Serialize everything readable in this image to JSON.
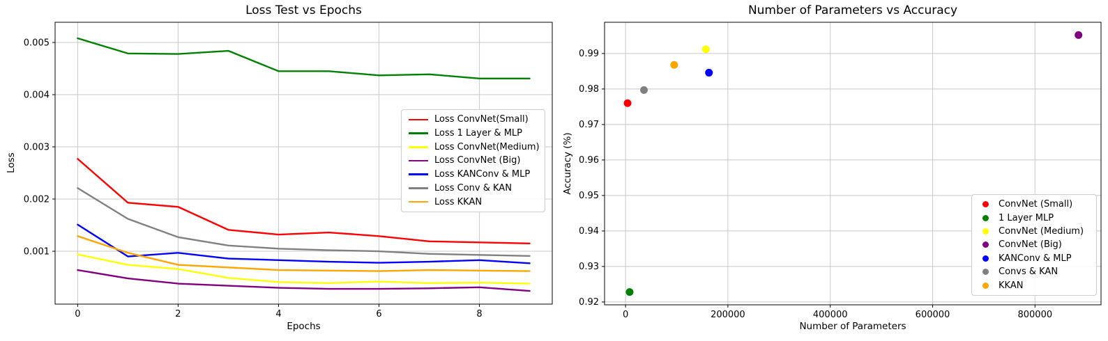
{
  "figure": {
    "background": "#ffffff",
    "text_color": "#000000",
    "grid_color": "#c8c8c8"
  },
  "chart_data": [
    {
      "type": "line",
      "title": "Loss Test vs Epochs",
      "xlabel": "Epochs",
      "ylabel": "Loss",
      "grid": true,
      "legend_position": "center right",
      "xlim": [
        -0.45,
        9.45
      ],
      "ylim": [
        -1.3e-05,
        0.005387
      ],
      "xticks": [
        0,
        2,
        4,
        6,
        8
      ],
      "xtick_labels": [
        "0",
        "2",
        "4",
        "6",
        "8"
      ],
      "yticks": [
        0.001,
        0.002,
        0.003,
        0.004,
        0.005
      ],
      "ytick_labels": [
        "0.001",
        "0.002",
        "0.003",
        "0.004",
        "0.005"
      ],
      "x": [
        0,
        1,
        2,
        3,
        4,
        5,
        6,
        7,
        8,
        9
      ],
      "series": [
        {
          "name": "Loss ConvNet(Small)",
          "color": "#ff0000",
          "values": [
            0.00277,
            0.00193,
            0.00185,
            0.00141,
            0.00132,
            0.00136,
            0.00129,
            0.00119,
            0.00117,
            0.00115
          ]
        },
        {
          "name": "Loss 1 Layer & MLP",
          "color": "#008000",
          "values": [
            0.00508,
            0.00479,
            0.00478,
            0.00484,
            0.00445,
            0.00445,
            0.00437,
            0.00439,
            0.00431,
            0.00431
          ]
        },
        {
          "name": "Loss ConvNet(Medium)",
          "color": "#ffff00",
          "values": [
            0.00094,
            0.00074,
            0.00066,
            0.00049,
            0.00041,
            0.00039,
            0.00042,
            0.00039,
            0.0004,
            0.00038
          ]
        },
        {
          "name": "Loss ConvNet (Big)",
          "color": "#800080",
          "values": [
            0.00064,
            0.00048,
            0.00038,
            0.00034,
            0.0003,
            0.00028,
            0.00028,
            0.00029,
            0.00031,
            0.00024
          ]
        },
        {
          "name": "Loss KANConv & MLP",
          "color": "#0000ff",
          "values": [
            0.00151,
            0.0009,
            0.00097,
            0.00086,
            0.00083,
            0.0008,
            0.00078,
            0.0008,
            0.00083,
            0.00077
          ]
        },
        {
          "name": "Loss Conv & KAN",
          "color": "#808080",
          "values": [
            0.00221,
            0.00162,
            0.00127,
            0.00111,
            0.00105,
            0.00102,
            0.001,
            0.00095,
            0.00093,
            0.00091
          ]
        },
        {
          "name": "Loss KKAN",
          "color": "#ffa500",
          "values": [
            0.00129,
            0.00097,
            0.00074,
            0.00069,
            0.00064,
            0.00063,
            0.00062,
            0.00064,
            0.00063,
            0.00062
          ]
        }
      ]
    },
    {
      "type": "scatter",
      "title": "Number of Parameters vs Accuracy",
      "xlabel": "Number of Parameters",
      "ylabel": "Accuracy (%)",
      "grid": true,
      "legend_position": "lower right",
      "xlim": [
        -41000,
        929000
      ],
      "ylim": [
        0.9192,
        0.9988
      ],
      "xticks": [
        0,
        200000,
        400000,
        600000,
        800000
      ],
      "xtick_labels": [
        "0",
        "200000",
        "400000",
        "600000",
        "800000"
      ],
      "yticks": [
        0.92,
        0.93,
        0.94,
        0.95,
        0.96,
        0.97,
        0.98,
        0.99
      ],
      "ytick_labels": [
        "0.92",
        "0.93",
        "0.94",
        "0.95",
        "0.96",
        "0.97",
        "0.98",
        "0.99"
      ],
      "points": [
        {
          "name": "ConvNet (Small)",
          "color": "#ff0000",
          "x": 4000,
          "y": 0.976
        },
        {
          "name": "1 Layer MLP",
          "color": "#008000",
          "x": 8000,
          "y": 0.9228
        },
        {
          "name": "ConvNet (Medium)",
          "color": "#ffff00",
          "x": 157000,
          "y": 0.9912
        },
        {
          "name": "ConvNet (Big)",
          "color": "#800080",
          "x": 885000,
          "y": 0.9952
        },
        {
          "name": "KANConv & MLP",
          "color": "#0000ff",
          "x": 163000,
          "y": 0.9846
        },
        {
          "name": "Convs & KAN",
          "color": "#808080",
          "x": 36000,
          "y": 0.9797
        },
        {
          "name": "KKAN",
          "color": "#ffa500",
          "x": 95000,
          "y": 0.9868
        }
      ]
    }
  ]
}
